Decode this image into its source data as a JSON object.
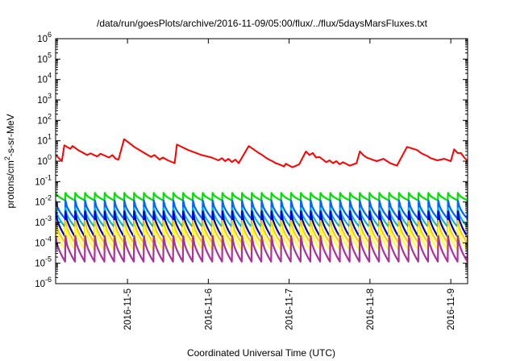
{
  "chart_data": {
    "type": "line",
    "title": "/data/run/goesPlots/archive/2016-11-09/05:00/flux/../flux/5daysMarsFluxes.txt",
    "xlabel": "Coordinated Universal Time (UTC)",
    "ylabel": "protons/cm²-s-sr-MeV",
    "ylabel_parts": {
      "base": "protons/cm",
      "sup": "2",
      "rest": "-s-sr-MeV"
    },
    "yscale": "log",
    "ylim": [
      1e-06,
      1000000.0
    ],
    "xlim": [
      "2016-11-04 02:40",
      "2016-11-09 05:00"
    ],
    "grid": false,
    "legend": "none",
    "x_ticks": [
      "2016-11-5",
      "2016-11-6",
      "2016-11-7",
      "2016-11-8",
      "2016-11-9"
    ],
    "y_ticks": [
      {
        "base": "10",
        "exp": "-6",
        "value": 1e-06
      },
      {
        "base": "10",
        "exp": "-5",
        "value": 1e-05
      },
      {
        "base": "10",
        "exp": "-4",
        "value": 0.0001
      },
      {
        "base": "10",
        "exp": "-3",
        "value": 0.001
      },
      {
        "base": "10",
        "exp": "-2",
        "value": 0.01
      },
      {
        "base": "10",
        "exp": "-1",
        "value": 0.1
      },
      {
        "base": "10",
        "exp": "0",
        "value": 1
      },
      {
        "base": "10",
        "exp": "1",
        "value": 10
      },
      {
        "base": "10",
        "exp": "2",
        "value": 100
      },
      {
        "base": "10",
        "exp": "3",
        "value": 1000
      },
      {
        "base": "10",
        "exp": "4",
        "value": 10000
      },
      {
        "base": "10",
        "exp": "5",
        "value": 100000
      },
      {
        "base": "10",
        "exp": "6",
        "value": 1000000
      }
    ],
    "series": [
      {
        "color": "#ff0000",
        "pattern": "sawtooth",
        "x": [
          "2016-11-04 02:40",
          "2016-11-04 04:30",
          "2016-11-04 05:15",
          "2016-11-04 07:00",
          "2016-11-04 07:40",
          "2016-11-04 09:20",
          "2016-11-04 12:00",
          "2016-11-04 13:00",
          "2016-11-04 15:00",
          "2016-11-04 16:00",
          "2016-11-04 18:30",
          "2016-11-04 19:30",
          "2016-11-04 20:30",
          "2016-11-04 21:20",
          "2016-11-04 23:00",
          "2016-11-05 00:00",
          "2016-11-05 02:00",
          "2016-11-05 05:00",
          "2016-11-05 07:00",
          "2016-11-05 08:00",
          "2016-11-05 09:30",
          "2016-11-05 10:30",
          "2016-11-05 12:00",
          "2016-11-05 14:00",
          "2016-11-05 14:40",
          "2016-11-05 18:00",
          "2016-11-05 22:00",
          "2016-11-06 01:00",
          "2016-11-06 03:00",
          "2016-11-06 04:00",
          "2016-11-06 05:00",
          "2016-11-06 06:00",
          "2016-11-06 07:00",
          "2016-11-06 08:00",
          "2016-11-06 09:00",
          "2016-11-06 12:00",
          "2016-11-06 15:00",
          "2016-11-06 16:00",
          "2016-11-06 17:00",
          "2016-11-06 18:00",
          "2016-11-06 19:00",
          "2016-11-06 20:00",
          "2016-11-06 21:00",
          "2016-11-06 22:30",
          "2016-11-06 23:00",
          "2016-11-07 01:00",
          "2016-11-07 03:00",
          "2016-11-07 05:00",
          "2016-11-07 06:00",
          "2016-11-07 07:00",
          "2016-11-07 08:00",
          "2016-11-07 09:00",
          "2016-11-07 10:00",
          "2016-11-07 11:00",
          "2016-11-07 12:00",
          "2016-11-07 13:00",
          "2016-11-07 14:00",
          "2016-11-07 15:00",
          "2016-11-07 16:00",
          "2016-11-07 18:00",
          "2016-11-07 20:00",
          "2016-11-07 21:00",
          "2016-11-07 22:00",
          "2016-11-07 23:00",
          "2016-11-08 00:00",
          "2016-11-08 02:00",
          "2016-11-08 04:00",
          "2016-11-08 06:00",
          "2016-11-08 08:00",
          "2016-11-08 11:00",
          "2016-11-08 14:00",
          "2016-11-08 15:00",
          "2016-11-08 16:00",
          "2016-11-08 17:00",
          "2016-11-08 18:00",
          "2016-11-08 20:00",
          "2016-11-08 22:00",
          "2016-11-09 00:00",
          "2016-11-09 01:00",
          "2016-11-09 02:00",
          "2016-11-09 03:00",
          "2016-11-09 04:00",
          "2016-11-09 05:00"
        ],
        "y": [
          2.0,
          1.0,
          6.0,
          4.0,
          5.5,
          3.5,
          2.0,
          2.4,
          1.7,
          2.3,
          1.5,
          2.0,
          1.3,
          1.2,
          12.0,
          9.0,
          5.0,
          2.5,
          1.6,
          2.0,
          1.2,
          1.5,
          1.1,
          0.8,
          6.5,
          3.5,
          2.0,
          1.5,
          1.1,
          1.4,
          1.0,
          1.3,
          0.9,
          1.2,
          0.8,
          5.5,
          2.5,
          2.0,
          1.5,
          1.2,
          1.0,
          0.8,
          0.7,
          0.55,
          0.75,
          0.5,
          0.7,
          3.0,
          2.0,
          2.5,
          1.5,
          1.6,
          1.2,
          0.9,
          1.1,
          0.8,
          1.0,
          0.7,
          0.9,
          0.6,
          0.8,
          3.0,
          2.0,
          1.5,
          1.3,
          1.0,
          1.3,
          0.8,
          0.6,
          5.0,
          3.5,
          2.6,
          2.1,
          1.8,
          1.4,
          1.1,
          1.3,
          1.0,
          3.8,
          2.5,
          2.5,
          1.5,
          1.0
        ]
      },
      {
        "color": "#00e000",
        "pattern": "sawtooth",
        "cycles": 42,
        "peak": 0.028,
        "trough": 0.012
      },
      {
        "color": "#0066ff",
        "pattern": "sawtooth",
        "cycles": 42,
        "peak": 0.012,
        "trough": 0.0015
      },
      {
        "color": "#00bbcc",
        "pattern": "sawtooth",
        "cycles": 42,
        "peak": 0.005,
        "trough": 0.0006
      },
      {
        "color": "#0000cc",
        "pattern": "sawtooth",
        "cycles": 42,
        "peak": 0.0035,
        "trough": 0.0002
      },
      {
        "color": "#ffcc00",
        "pattern": "sawtooth",
        "cycles": 42,
        "peak": 0.0012,
        "trough": 0.0001
      },
      {
        "color": "#ffff33",
        "pattern": "sawtooth",
        "cycles": 42,
        "peak": 0.0006,
        "trough": 4.5e-05
      },
      {
        "color": "#aa3399",
        "pattern": "sawtooth",
        "cycles": 42,
        "peak": 0.00022,
        "trough": 1.2e-05
      }
    ]
  }
}
